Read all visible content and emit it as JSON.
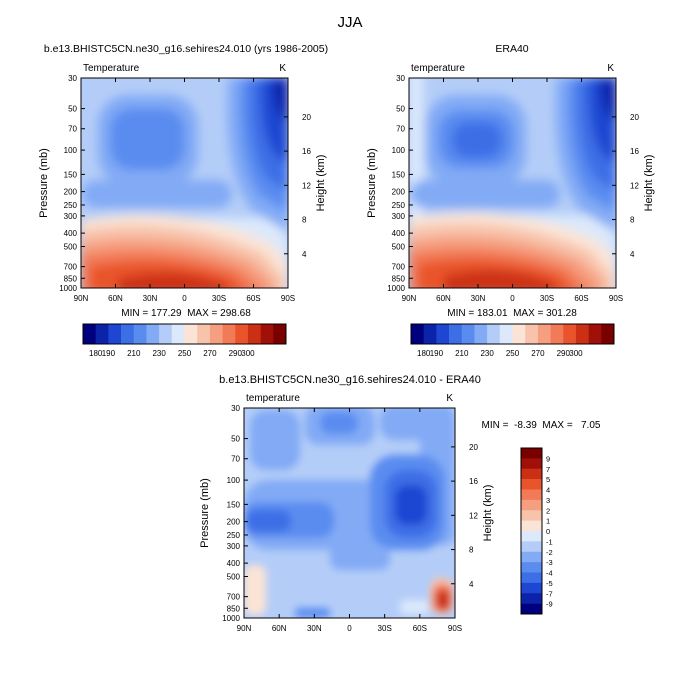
{
  "main_title": "JJA",
  "chart_data": [
    {
      "type": "heatmap",
      "title": "b.e13.BHISTC5CN.ne30_g16.sehires24.010 (yrs 1986-2005)",
      "left_label": "Temperature",
      "right_label": "K",
      "xlabel": "",
      "ylabel": "Pressure (mb)",
      "y2label": "Height (km)",
      "x_ticks": [
        "90N",
        "60N",
        "30N",
        "0",
        "30S",
        "60S",
        "90S"
      ],
      "x_range": [
        90,
        -90
      ],
      "y_ticks": [
        30,
        50,
        70,
        100,
        150,
        200,
        250,
        300,
        400,
        500,
        700,
        850,
        1000
      ],
      "y_range": [
        30,
        1000
      ],
      "y_scale": "log",
      "y2_ticks": [
        4,
        8,
        12,
        16,
        20
      ],
      "stats": "MIN = 177.29  MAX = 298.68",
      "min": 177.29,
      "max": 298.68,
      "colorbar": {
        "labels": [
          "180",
          "190",
          "210",
          "230",
          "250",
          "270",
          "290",
          "300"
        ],
        "colors": [
          "#00007f",
          "#0a23a8",
          "#1e46d2",
          "#3c6ee6",
          "#5a8cf0",
          "#82aaf5",
          "#b4cdf8",
          "#dce9fb",
          "#fbe4d6",
          "#f8c3ab",
          "#f59f80",
          "#f27a57",
          "#e9542c",
          "#cc3014",
          "#a11008",
          "#7a0000"
        ]
      }
    },
    {
      "type": "heatmap",
      "title": "ERA40",
      "left_label": "temperature",
      "right_label": "K",
      "xlabel": "",
      "ylabel": "Pressure (mb)",
      "y2label": "Height (km)",
      "x_ticks": [
        "90N",
        "60N",
        "30N",
        "0",
        "30S",
        "60S",
        "90S"
      ],
      "x_range": [
        90,
        -90
      ],
      "y_ticks": [
        30,
        50,
        70,
        100,
        150,
        200,
        250,
        300,
        400,
        500,
        700,
        850,
        1000
      ],
      "y_range": [
        30,
        1000
      ],
      "y_scale": "log",
      "y2_ticks": [
        4,
        8,
        12,
        16,
        20
      ],
      "stats": "MIN = 183.01  MAX = 301.28",
      "min": 183.01,
      "max": 301.28,
      "colorbar": {
        "labels": [
          "180",
          "190",
          "210",
          "230",
          "250",
          "270",
          "290",
          "300"
        ],
        "colors": [
          "#00007f",
          "#0a23a8",
          "#1e46d2",
          "#3c6ee6",
          "#5a8cf0",
          "#82aaf5",
          "#b4cdf8",
          "#dce9fb",
          "#fbe4d6",
          "#f8c3ab",
          "#f59f80",
          "#f27a57",
          "#e9542c",
          "#cc3014",
          "#a11008",
          "#7a0000"
        ]
      }
    },
    {
      "type": "heatmap",
      "title": "b.e13.BHISTC5CN.ne30_g16.sehires24.010 - ERA40",
      "left_label": "temperature",
      "right_label": "K",
      "xlabel": "",
      "ylabel": "Pressure (mb)",
      "y2label": "Height (km)",
      "x_ticks": [
        "90N",
        "60N",
        "30N",
        "0",
        "30S",
        "60S",
        "90S"
      ],
      "x_range": [
        90,
        -90
      ],
      "y_ticks": [
        30,
        50,
        70,
        100,
        150,
        200,
        250,
        300,
        400,
        500,
        700,
        850,
        1000
      ],
      "y_range": [
        30,
        1000
      ],
      "y_scale": "log",
      "y2_ticks": [
        4,
        8,
        12,
        16,
        20
      ],
      "stats": "MIN =  -8.39  MAX =   7.05",
      "min": -8.39,
      "max": 7.05,
      "colorbar": {
        "labels": [
          "9",
          "7",
          "5",
          "4",
          "3",
          "2",
          "1",
          "0",
          "-1",
          "-2",
          "-3",
          "-4",
          "-5",
          "-7",
          "-9"
        ],
        "colors": [
          "#7a0000",
          "#a11008",
          "#cc3014",
          "#e9542c",
          "#f27a57",
          "#f59f80",
          "#f8c3ab",
          "#fbe4d6",
          "#dce9fb",
          "#b4cdf8",
          "#82aaf5",
          "#5a8cf0",
          "#3c6ee6",
          "#1e46d2",
          "#0a23a8",
          "#00007f"
        ]
      }
    }
  ]
}
